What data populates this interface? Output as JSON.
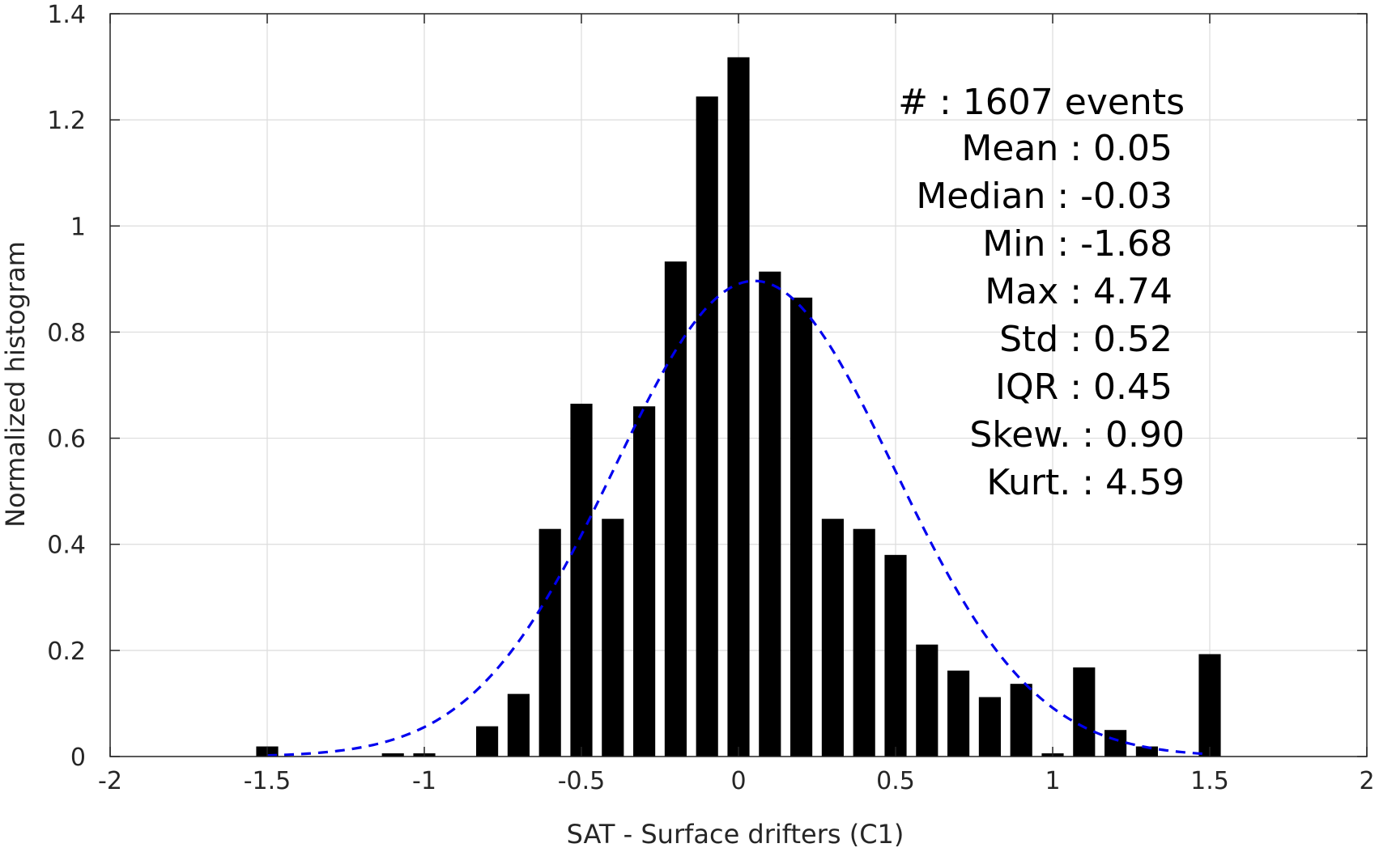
{
  "chart_data": {
    "type": "bar",
    "title": "",
    "xlabel": "SAT - Surface drifters (C1)",
    "ylabel": "Normalized histogram",
    "xlim": [
      -2,
      2
    ],
    "ylim": [
      0,
      1.4
    ],
    "xticks": [
      -2,
      -1.5,
      -1,
      -0.5,
      0,
      0.5,
      1,
      1.5,
      2
    ],
    "xtick_labels": [
      "-2",
      "-1.5",
      "-1",
      "-0.5",
      "0",
      "0.5",
      "1",
      "1.5",
      "2"
    ],
    "yticks": [
      0,
      0.2,
      0.4,
      0.6,
      0.8,
      1,
      1.2,
      1.4
    ],
    "ytick_labels": [
      "0",
      "0.2",
      "0.4",
      "0.6",
      "0.8",
      "1",
      "1.2",
      "1.4"
    ],
    "grid": true,
    "bar_color": "#000000",
    "bin_width": 0.1,
    "bar_width": 0.07,
    "bins": [
      {
        "x": -1.5,
        "y": 0.019
      },
      {
        "x": -1.1,
        "y": 0.006
      },
      {
        "x": -1.0,
        "y": 0.006
      },
      {
        "x": -0.8,
        "y": 0.057
      },
      {
        "x": -0.7,
        "y": 0.118
      },
      {
        "x": -0.6,
        "y": 0.429
      },
      {
        "x": -0.5,
        "y": 0.665
      },
      {
        "x": -0.4,
        "y": 0.448
      },
      {
        "x": -0.3,
        "y": 0.66
      },
      {
        "x": -0.2,
        "y": 0.933
      },
      {
        "x": -0.1,
        "y": 1.244
      },
      {
        "x": 0.0,
        "y": 1.318
      },
      {
        "x": 0.1,
        "y": 0.914
      },
      {
        "x": 0.2,
        "y": 0.865
      },
      {
        "x": 0.3,
        "y": 0.448
      },
      {
        "x": 0.4,
        "y": 0.429
      },
      {
        "x": 0.5,
        "y": 0.38
      },
      {
        "x": 0.6,
        "y": 0.211
      },
      {
        "x": 0.7,
        "y": 0.162
      },
      {
        "x": 0.8,
        "y": 0.112
      },
      {
        "x": 0.9,
        "y": 0.137
      },
      {
        "x": 1.0,
        "y": 0.006
      },
      {
        "x": 1.1,
        "y": 0.168
      },
      {
        "x": 1.2,
        "y": 0.05
      },
      {
        "x": 1.3,
        "y": 0.019
      },
      {
        "x": 1.5,
        "y": 0.193
      }
    ],
    "fit_curve": {
      "style": "dashed",
      "color": "#0000ee",
      "mean": 0.05,
      "std": 0.445,
      "x_range": [
        -1.5,
        1.5
      ]
    },
    "annotations": [
      "#  : 1607 events",
      "Mean : 0.05",
      "Median : -0.03",
      "Min : -1.68",
      "Max : 4.74",
      "Std : 0.52",
      "IQR : 0.45",
      "Skew. : 0.90",
      "Kurt. : 4.59"
    ]
  }
}
